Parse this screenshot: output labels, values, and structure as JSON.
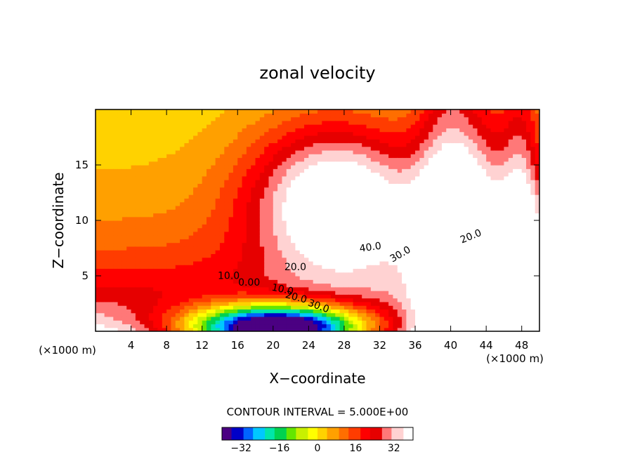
{
  "chart_data": {
    "type": "contour",
    "title": "zonal velocity",
    "xlabel": "X−coordinate",
    "ylabel": "Z−coordinate",
    "x_unit": "(×1000 m)",
    "z_unit": "(×1000 m)",
    "xlim": [
      0,
      50
    ],
    "ylim": [
      0,
      20
    ],
    "x_ticks": [
      4,
      8,
      12,
      16,
      20,
      24,
      28,
      32,
      36,
      40,
      44,
      48
    ],
    "x_tick_labels": [
      "4",
      "8",
      "12",
      "16",
      "20",
      "24",
      "28",
      "32",
      "36",
      "40",
      "44",
      "48"
    ],
    "y_ticks": [
      5,
      10,
      15
    ],
    "y_tick_labels": [
      "5",
      "10",
      "15"
    ],
    "contour_interval_text": "CONTOUR INTERVAL = 5.000E+00",
    "contour_interval": 5,
    "contour_labels": [
      {
        "text": "40.0",
        "x": 31.0,
        "z": 7.3,
        "angle": -8
      },
      {
        "text": "30.0",
        "x": 34.5,
        "z": 6.7,
        "angle": -30
      },
      {
        "text": "20.0",
        "x": 42.4,
        "z": 8.3,
        "angle": -22
      },
      {
        "text": "20.0",
        "x": 22.5,
        "z": 5.5,
        "angle": 0
      },
      {
        "text": "10.0",
        "x": 15.0,
        "z": 4.7,
        "angle": 0
      },
      {
        "text": "0.00",
        "x": 17.3,
        "z": 4.1,
        "angle": 0
      },
      {
        "text": "10.0",
        "x": 21.0,
        "z": 3.5,
        "angle": 12
      },
      {
        "text": "20.0",
        "x": 22.5,
        "z": 2.8,
        "angle": 15
      },
      {
        "text": "30.0",
        "x": 25.0,
        "z": 2.0,
        "angle": 20
      }
    ],
    "colorbar": {
      "min": -40,
      "max": 40,
      "ticks": [
        -32,
        -16,
        0,
        16,
        32
      ],
      "tick_labels": [
        "−32",
        "−16",
        "0",
        "16",
        "32"
      ]
    },
    "colors": [
      "#4b0082",
      "#0000c8",
      "#0064ff",
      "#00c8ff",
      "#00e6aa",
      "#00d250",
      "#64e600",
      "#c8f000",
      "#ffff00",
      "#ffd200",
      "#ffa000",
      "#ff6e00",
      "#ff3c00",
      "#ff0000",
      "#e60000",
      "#ff7878",
      "#ffd2d2",
      "#ffffff"
    ]
  }
}
